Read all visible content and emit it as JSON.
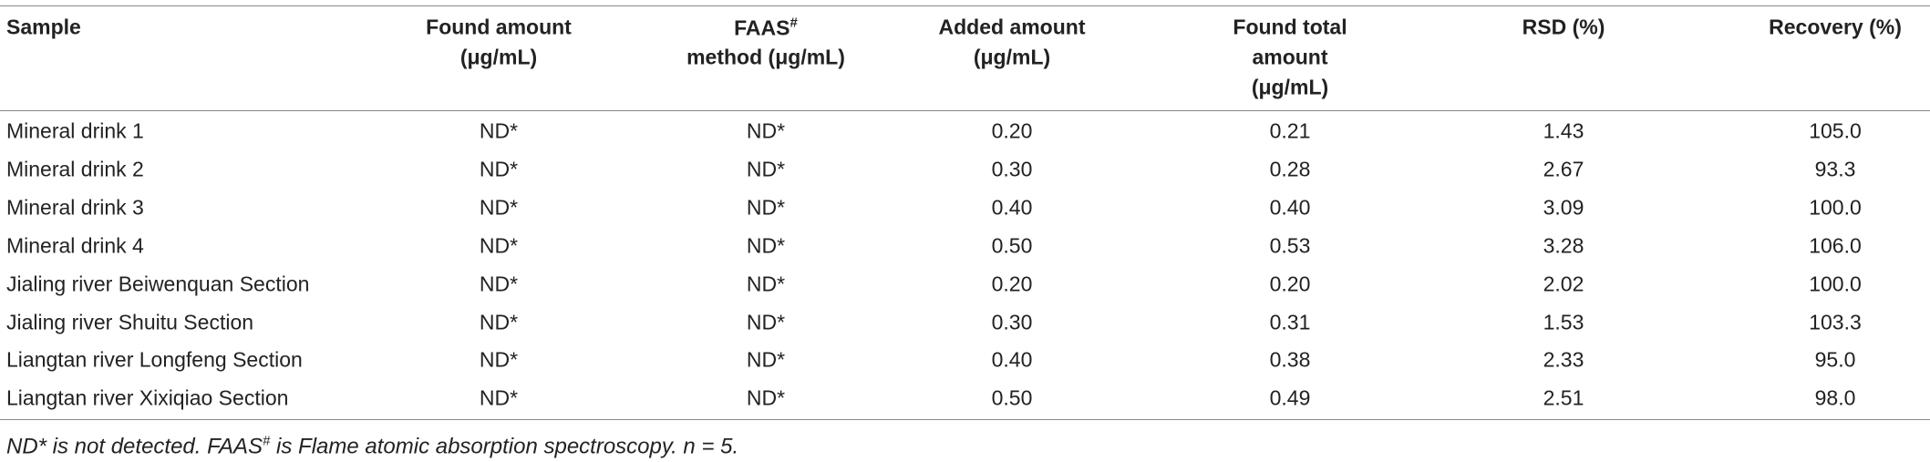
{
  "table": {
    "columns": [
      {
        "lines": [
          "Sample"
        ]
      },
      {
        "lines": [
          "Found amount",
          "(μg/mL)"
        ]
      },
      {
        "lines": [
          "FAAS",
          "method (μg/mL)"
        ],
        "sup": "#"
      },
      {
        "lines": [
          "Added amount",
          "(μg/mL)"
        ]
      },
      {
        "lines": [
          "Found total",
          "amount",
          "(μg/mL)"
        ]
      },
      {
        "lines": [
          "RSD (%)"
        ]
      },
      {
        "lines": [
          "Recovery (%)"
        ]
      }
    ],
    "rows": [
      [
        "Mineral drink 1",
        "ND*",
        "ND*",
        "0.20",
        "0.21",
        "1.43",
        "105.0"
      ],
      [
        "Mineral drink 2",
        "ND*",
        "ND*",
        "0.30",
        "0.28",
        "2.67",
        "93.3"
      ],
      [
        "Mineral drink 3",
        "ND*",
        "ND*",
        "0.40",
        "0.40",
        "3.09",
        "100.0"
      ],
      [
        "Mineral drink 4",
        "ND*",
        "ND*",
        "0.50",
        "0.53",
        "3.28",
        "106.0"
      ],
      [
        "Jialing river Beiwenquan Section",
        "ND*",
        "ND*",
        "0.20",
        "0.20",
        "2.02",
        "100.0"
      ],
      [
        "Jialing river Shuitu Section",
        "ND*",
        "ND*",
        "0.30",
        "0.31",
        "1.53",
        "103.3"
      ],
      [
        "Liangtan river Longfeng Section",
        "ND*",
        "ND*",
        "0.40",
        "0.38",
        "2.33",
        "95.0"
      ],
      [
        "Liangtan river Xixiqiao Section",
        "ND*",
        "ND*",
        "0.50",
        "0.49",
        "2.51",
        "98.0"
      ]
    ],
    "footnote": [
      "ND* is not detected. FAAS",
      "#",
      " is Flame atomic absorption spectroscopy. n = 5."
    ]
  }
}
